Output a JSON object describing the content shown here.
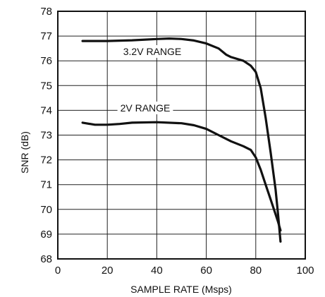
{
  "chart_data": {
    "type": "line",
    "title": "",
    "xlabel": "SAMPLE RATE (Msps)",
    "ylabel": "SNR (dB)",
    "xlim": [
      0,
      100
    ],
    "ylim": [
      68,
      78
    ],
    "x_ticks": [
      0,
      20,
      40,
      60,
      80,
      100
    ],
    "y_ticks": [
      68,
      69,
      70,
      71,
      72,
      73,
      74,
      75,
      76,
      77,
      78
    ],
    "grid": true,
    "series": [
      {
        "name": "3.2V RANGE",
        "x": [
          10,
          20,
          30,
          40,
          45,
          50,
          55,
          60,
          65,
          68,
          70,
          75,
          78,
          80,
          82,
          84,
          86,
          88,
          89,
          90
        ],
        "y": [
          76.8,
          76.8,
          76.83,
          76.88,
          76.9,
          76.88,
          76.82,
          76.7,
          76.5,
          76.25,
          76.15,
          76.0,
          75.8,
          75.55,
          74.9,
          73.7,
          72.3,
          70.8,
          69.8,
          68.7
        ]
      },
      {
        "name": "2V RANGE",
        "x": [
          10,
          15,
          20,
          25,
          30,
          40,
          50,
          55,
          60,
          65,
          70,
          75,
          78,
          80,
          82,
          84,
          86,
          88,
          89,
          90
        ],
        "y": [
          73.5,
          73.42,
          73.42,
          73.45,
          73.5,
          73.52,
          73.48,
          73.4,
          73.25,
          73.0,
          72.75,
          72.55,
          72.4,
          72.1,
          71.6,
          71.0,
          70.4,
          69.8,
          69.5,
          69.15
        ]
      }
    ],
    "annotations": [
      {
        "text": "3.2V RANGE",
        "series": "3.2V RANGE"
      },
      {
        "text": "2V RANGE",
        "series": "2V RANGE"
      }
    ]
  }
}
